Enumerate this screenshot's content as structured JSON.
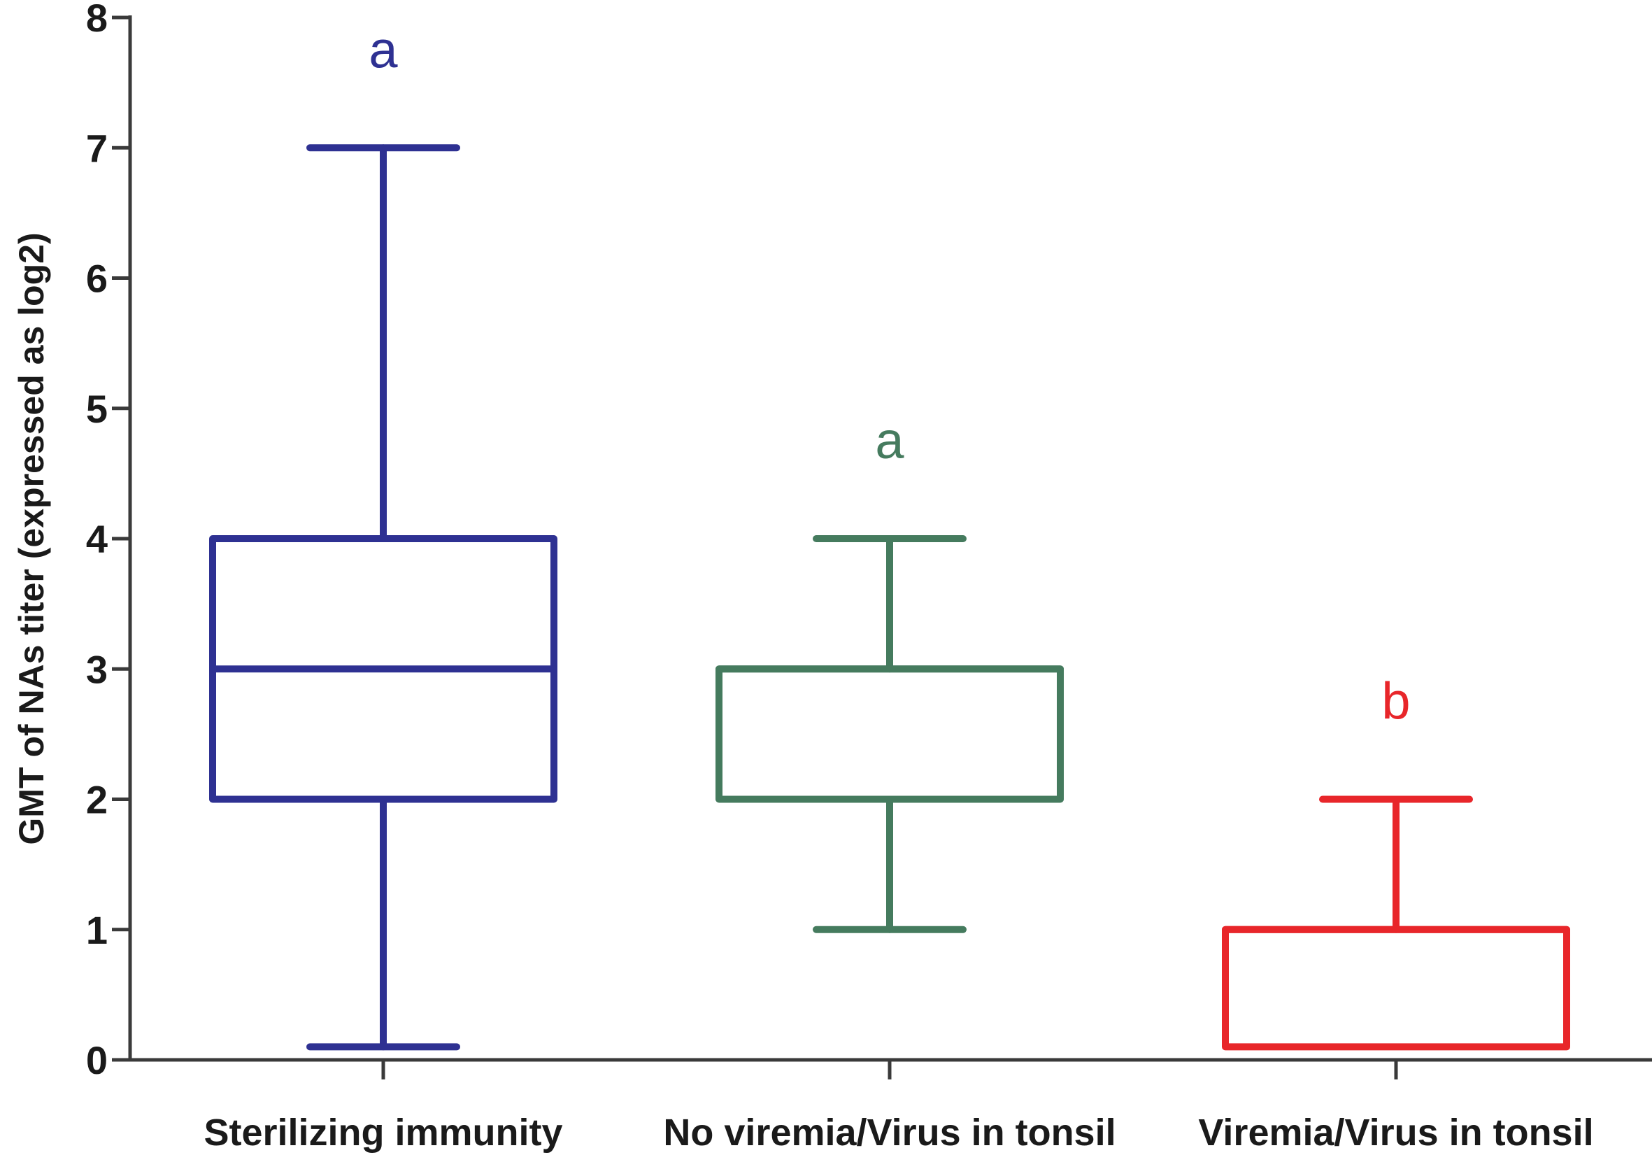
{
  "chart_data": {
    "type": "box",
    "title": "",
    "xlabel": "",
    "ylabel": "GMT of NAs titer (expressed as log2)",
    "ylim": [
      0,
      8
    ],
    "yticks": [
      "0",
      "1",
      "2",
      "3",
      "4",
      "5",
      "6",
      "7",
      "8"
    ],
    "grid": false,
    "categories": [
      "Sterilizing immunity",
      "No viremia/Virus in tonsil",
      "Viremia/Virus in tonsil"
    ],
    "series": [
      {
        "whisker_low": 0.1,
        "q1": 2,
        "median": 3,
        "q3": 4,
        "whisker_high": 7,
        "significance": "a",
        "color": "#2e3192"
      },
      {
        "whisker_low": 1,
        "q1": 2,
        "median": 3,
        "q3": 3,
        "whisker_high": 4,
        "significance": "a",
        "color": "#457b5e"
      },
      {
        "whisker_low": 0.1,
        "q1": 0.1,
        "median": 1,
        "q3": 1,
        "whisker_high": 2,
        "significance": "b",
        "color": "#e8262a"
      }
    ]
  }
}
